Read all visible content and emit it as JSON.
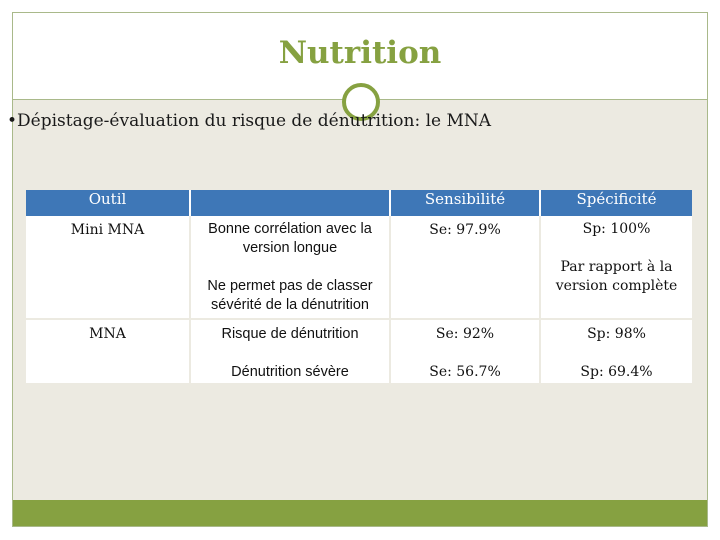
{
  "slide": {
    "title": "Nutrition",
    "bullet": "•Dépistage-évaluation du risque de dénutrition: le MNA",
    "accent_color": "#86a141",
    "header_color": "#3e77b7"
  },
  "table": {
    "headers": [
      "Outil",
      "",
      "Sensibilité",
      "Spécificité"
    ],
    "rows": [
      {
        "outil": "Mini MNA",
        "desc_1": "Bonne corrélation avec la version longue",
        "desc_2": "Ne permet pas de classer sévérité de la dénutrition",
        "sens": "Se: 97.9%",
        "spec_1": "Sp: 100%",
        "spec_2": "Par rapport à la version complète"
      },
      {
        "outil": "MNA",
        "desc_1": "Risque de dénutrition",
        "desc_2": "Dénutrition sévère",
        "sens_1": "Se: 92%",
        "sens_2": "Se: 56.7%",
        "spec_1": "Sp: 98%",
        "spec_2": "Sp: 69.4%"
      }
    ]
  }
}
